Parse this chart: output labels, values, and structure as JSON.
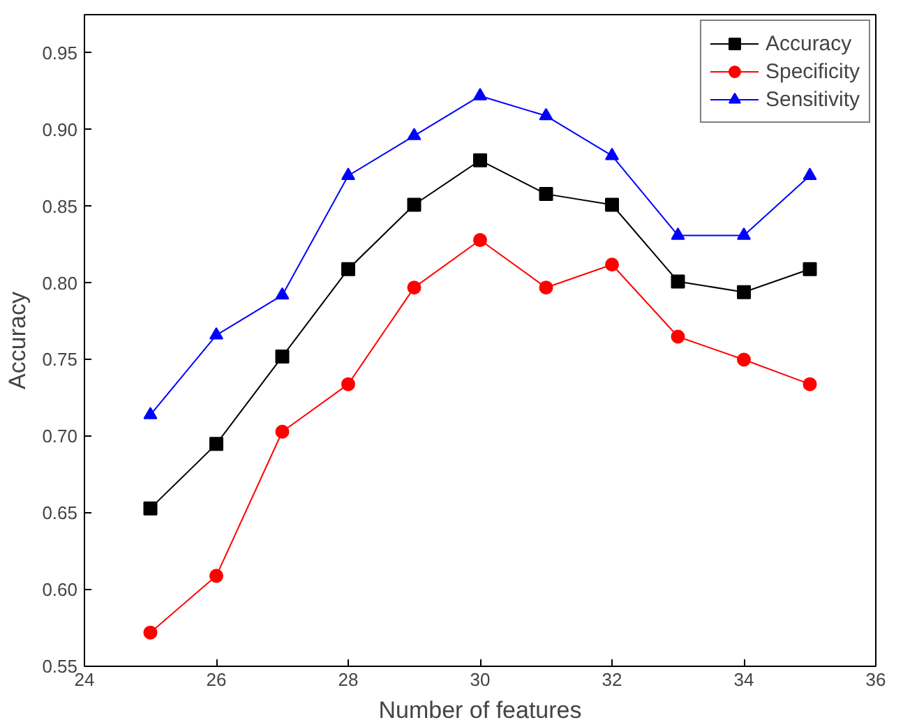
{
  "chart_data": {
    "type": "line",
    "xlabel": "Number of features",
    "ylabel": "Accuracy",
    "x": [
      25,
      26,
      27,
      28,
      29,
      30,
      31,
      32,
      33,
      34,
      35
    ],
    "series": [
      {
        "name": "Accuracy",
        "color": "#000000",
        "marker": "square",
        "values": [
          0.653,
          0.695,
          0.752,
          0.809,
          0.851,
          0.88,
          0.858,
          0.851,
          0.801,
          0.794,
          0.809
        ]
      },
      {
        "name": "Specificity",
        "color": "#ff0000",
        "marker": "circle",
        "values": [
          0.572,
          0.609,
          0.703,
          0.734,
          0.797,
          0.828,
          0.797,
          0.812,
          0.765,
          0.75,
          0.734
        ]
      },
      {
        "name": "Sensitivity",
        "color": "#0000ff",
        "marker": "triangle",
        "values": [
          0.714,
          0.766,
          0.792,
          0.87,
          0.896,
          0.922,
          0.909,
          0.883,
          0.831,
          0.831,
          0.87
        ]
      }
    ],
    "xlim": [
      24,
      36
    ],
    "xticks": [
      24,
      26,
      28,
      30,
      32,
      34,
      36
    ],
    "ylim": [
      0.55,
      0.975
    ],
    "yticks": [
      {
        "value": 0.55,
        "label": "0.55"
      },
      {
        "value": 0.6,
        "label": "0.60"
      },
      {
        "value": 0.65,
        "label": "0.65"
      },
      {
        "value": 0.7,
        "label": "0.70"
      },
      {
        "value": 0.75,
        "label": "0.75"
      },
      {
        "value": 0.8,
        "label": "0.80"
      },
      {
        "value": 0.85,
        "label": "0.85"
      },
      {
        "value": 0.9,
        "label": "0.90"
      },
      {
        "value": 0.95,
        "label": "0.95"
      }
    ],
    "grid": false,
    "legend": "top right",
    "line_style": "solid"
  }
}
